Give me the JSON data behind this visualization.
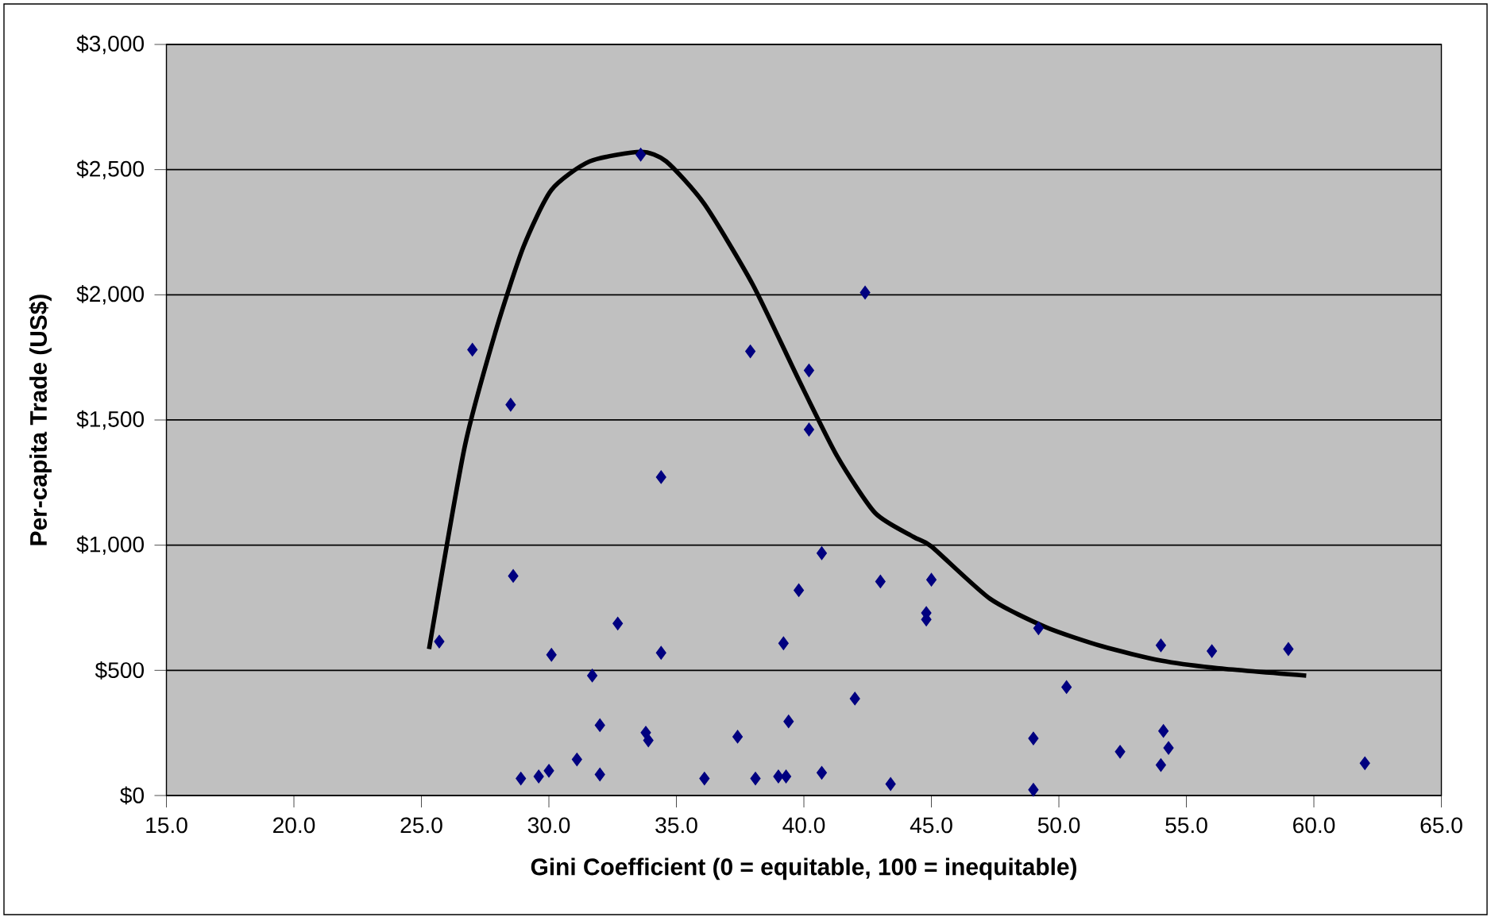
{
  "chart_data": {
    "type": "scatter",
    "xlabel": "Gini Coefficient (0 = equitable, 100 = inequitable)",
    "ylabel": "Per-capita Trade (US$)",
    "xlim": [
      15,
      65
    ],
    "ylim": [
      0,
      3000
    ],
    "xticks": [
      {
        "value": 15,
        "label": "15.0"
      },
      {
        "value": 20,
        "label": "20.0"
      },
      {
        "value": 25,
        "label": "25.0"
      },
      {
        "value": 30,
        "label": "30.0"
      },
      {
        "value": 35,
        "label": "35.0"
      },
      {
        "value": 40,
        "label": "40.0"
      },
      {
        "value": 45,
        "label": "45.0"
      },
      {
        "value": 50,
        "label": "50.0"
      },
      {
        "value": 55,
        "label": "55.0"
      },
      {
        "value": 60,
        "label": "60.0"
      },
      {
        "value": 65,
        "label": "65.0"
      }
    ],
    "yticks": [
      {
        "value": 0,
        "label": "$0"
      },
      {
        "value": 500,
        "label": "$500"
      },
      {
        "value": 1000,
        "label": "$1,000"
      },
      {
        "value": 1500,
        "label": "$1,500"
      },
      {
        "value": 2000,
        "label": "$2,000"
      },
      {
        "value": 2500,
        "label": "$2,500"
      },
      {
        "value": 3000,
        "label": "$3,000"
      }
    ],
    "grid": "y",
    "marker": "diamond",
    "series": [
      {
        "color": "#000080",
        "x": [
          25.7,
          27.0,
          28.5,
          28.6,
          28.9,
          29.6,
          30.0,
          30.1,
          31.1,
          31.7,
          32.0,
          32.0,
          32.7,
          33.6,
          33.8,
          33.9,
          34.4,
          34.4,
          36.1,
          37.4,
          37.9,
          38.1,
          39.0,
          39.2,
          39.3,
          39.4,
          39.8,
          40.2,
          40.2,
          40.7,
          40.7,
          42.0,
          42.4,
          43.0,
          43.4,
          44.8,
          44.8,
          45.0,
          49.0,
          49.0,
          49.2,
          50.3,
          52.4,
          54.0,
          54.0,
          54.1,
          54.3,
          56.0,
          59.0,
          62.0
        ],
        "values": [
          615,
          1781,
          1561,
          877,
          68,
          76,
          99,
          562,
          144,
          479,
          281,
          84,
          687,
          2560,
          251,
          220,
          1272,
          570,
          68,
          235,
          1774,
          68,
          76,
          608,
          76,
          296,
          820,
          1698,
          1462,
          968,
          91,
          387,
          2009,
          855,
          46,
          729,
          703,
          862,
          228,
          23,
          668,
          433,
          175,
          600,
          122,
          258,
          190,
          577,
          585,
          129
        ]
      },
      {
        "type": "line",
        "color": "#000000",
        "marker": "none",
        "x": [
          25.3,
          26.7,
          27.9,
          29.0,
          30.1,
          31.6,
          33.6,
          34.6,
          36.1,
          38.0,
          39.8,
          41.3,
          42.8,
          44.3,
          45.0,
          47.3,
          49.5,
          51.7,
          54.0,
          56.2,
          59.7
        ],
        "values": [
          585,
          1394,
          1850,
          2191,
          2419,
          2533,
          2571,
          2533,
          2362,
          2040,
          1660,
          1356,
          1128,
          1033,
          995,
          786,
          672,
          596,
          539,
          509,
          479
        ]
      }
    ]
  }
}
